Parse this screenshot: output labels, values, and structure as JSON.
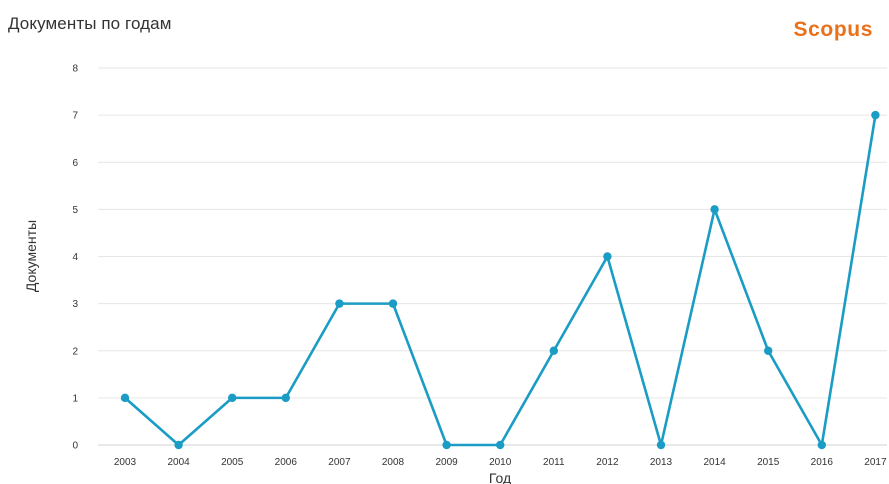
{
  "header": {
    "title": "Документы по годам",
    "brand": "Scopus",
    "brand_color": "#e9711c"
  },
  "chart_data": {
    "type": "line",
    "title": "Документы по годам",
    "xlabel": "Год",
    "ylabel": "Документы",
    "categories": [
      "2003",
      "2004",
      "2005",
      "2006",
      "2007",
      "2008",
      "2009",
      "2010",
      "2011",
      "2012",
      "2013",
      "2014",
      "2015",
      "2016",
      "2017"
    ],
    "series": [
      {
        "values": [
          1,
          0,
          1,
          1,
          3,
          3,
          0,
          0,
          2,
          4,
          0,
          5,
          2,
          0,
          7
        ],
        "color": "#1a9cc4"
      }
    ],
    "ylim": [
      0,
      8
    ],
    "yticks": [
      0,
      1,
      2,
      3,
      4,
      5,
      6,
      7,
      8
    ],
    "grid": true,
    "legend": "none",
    "markers": "circle"
  }
}
